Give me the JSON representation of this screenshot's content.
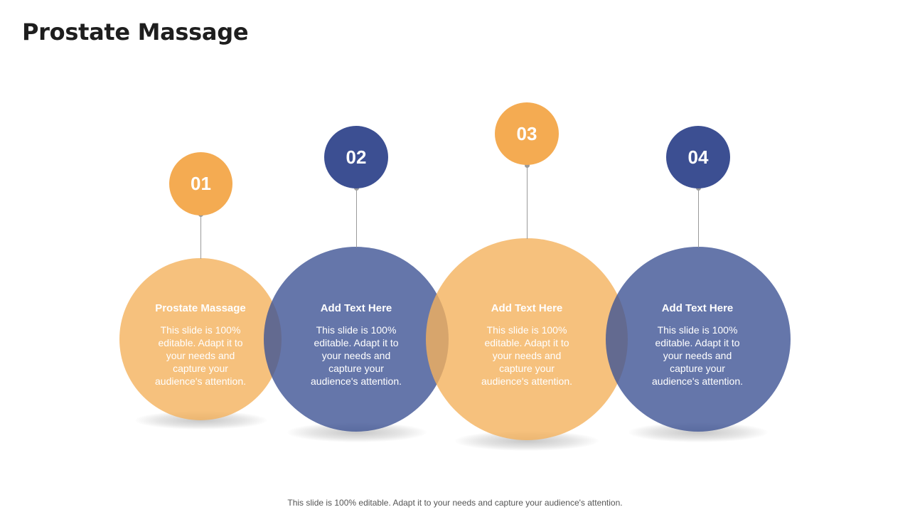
{
  "title": "Prostate Massage",
  "colors": {
    "orange": "#F4B25D",
    "blue": "#3F5495"
  },
  "steps": [
    {
      "number": "01",
      "heading": "Prostate Massage",
      "body": "This slide is 100% editable. Adapt it to your needs and capture your audience's attention.",
      "color": "orange"
    },
    {
      "number": "02",
      "heading": "Add Text Here",
      "body": "This slide is 100% editable. Adapt it to your needs and capture your audience's attention.",
      "color": "blue"
    },
    {
      "number": "03",
      "heading": "Add Text Here",
      "body": "This slide is 100% editable. Adapt it to your needs and capture your audience's attention.",
      "color": "orange"
    },
    {
      "number": "04",
      "heading": "Add Text Here",
      "body": "This slide is 100% editable. Adapt it to your needs and capture your audience's attention.",
      "color": "blue"
    }
  ],
  "footer": "This slide is 100% editable. Adapt it to your needs and capture your audience's attention."
}
